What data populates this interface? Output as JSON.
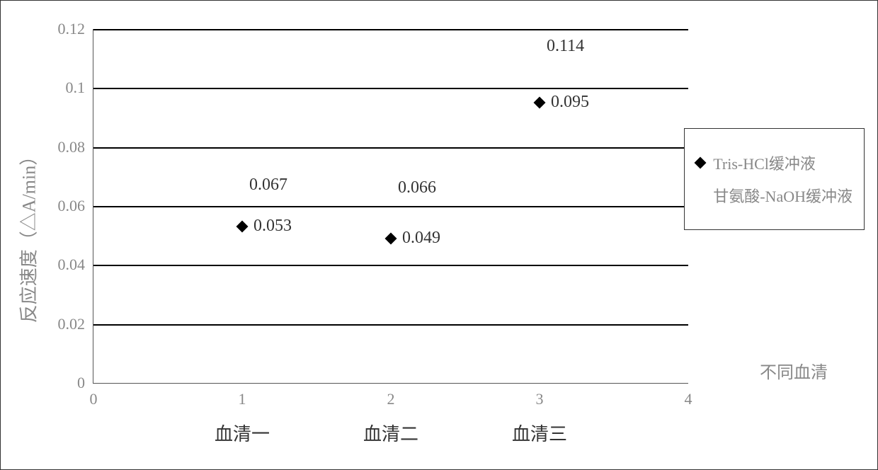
{
  "chart": {
    "type": "scatter",
    "background_color": "#ffffff",
    "border_color": "#333333",
    "grid_color": "#000000",
    "text_color": "#888888",
    "marker_color": "#000000",
    "ylabel": "反应速度（△A/min）",
    "ylim": [
      0,
      0.12
    ],
    "ytick_step": 0.02,
    "yticks": [
      "0",
      "0.02",
      "0.04",
      "0.06",
      "0.08",
      "0.1",
      "0.12"
    ],
    "xlim": [
      0,
      4
    ],
    "xticks": [
      "0",
      "1",
      "2",
      "3",
      "4"
    ],
    "x_sublabel": "不同血清",
    "categories": [
      "血清一",
      "血清二",
      "血清三"
    ],
    "category_positions": [
      1,
      2,
      3
    ],
    "series": [
      {
        "name": "Tris-HCl缓冲液",
        "marker": "diamond",
        "data": [
          {
            "x": 1,
            "y": 0.053,
            "label": "0.053"
          },
          {
            "x": 2,
            "y": 0.049,
            "label": "0.049"
          },
          {
            "x": 3,
            "y": 0.095,
            "label": "0.095"
          }
        ]
      },
      {
        "name": "甘氨酸-NaOH缓冲液",
        "marker": "none",
        "data": [
          {
            "x": 1,
            "y": 0.067,
            "label": "0.067"
          },
          {
            "x": 2,
            "y": 0.066,
            "label": "0.066"
          },
          {
            "x": 3,
            "y": 0.114,
            "label": "0.114"
          }
        ]
      }
    ],
    "label_fontsize": 24,
    "tick_fontsize": 22,
    "marker_size": 12
  }
}
